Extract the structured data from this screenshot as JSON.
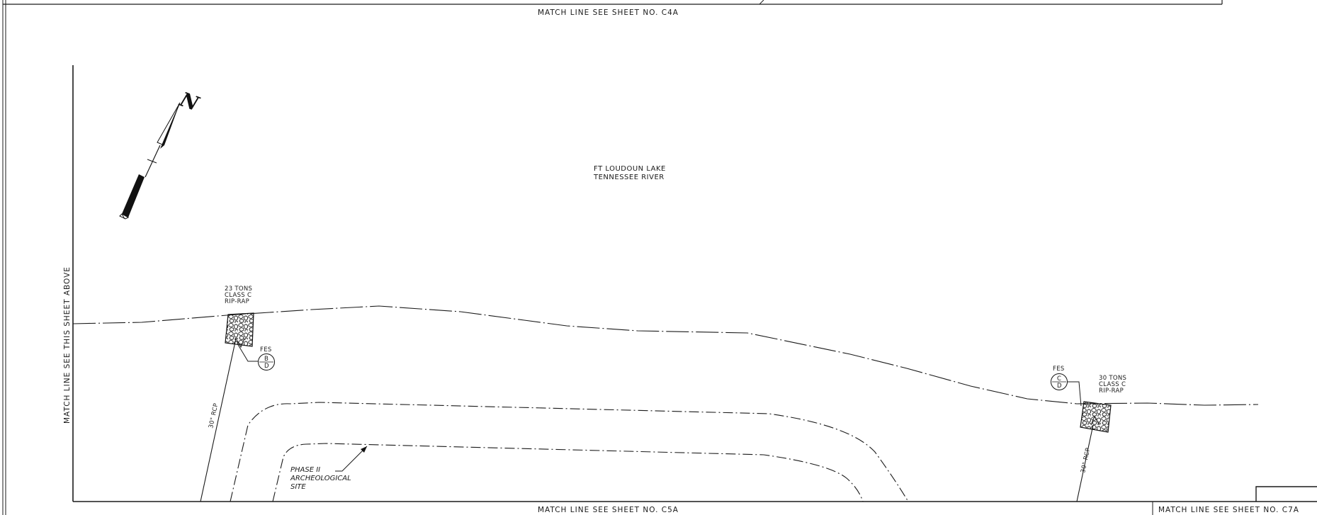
{
  "sheet": {
    "match_lines": {
      "top": "MATCH LINE     SEE SHEET NO.  C4A",
      "bottom": "MATCH LINE     SEE SHEET NO.  C5A",
      "bottom_right": "MATCH LINE   SEE SHEET NO. C7A",
      "left": "MATCH LINE   SEE THIS SHEET ABOVE"
    },
    "north_arrow": {
      "label": "N"
    },
    "water_body": {
      "line1": "FT LOUDOUN LAKE",
      "line2": "TENNESSEE RIVER"
    },
    "riprap_left": {
      "line1": "23 TONS",
      "line2": "CLASS C",
      "line3": "RIP-RAP"
    },
    "riprap_right": {
      "line1": "30 TONS",
      "line2": "CLASS C",
      "line3": "RIP-RAP"
    },
    "fes_left": {
      "label": "FES",
      "top": "B",
      "bottom": "D"
    },
    "fes_right": {
      "label": "FES",
      "top": "C",
      "bottom": "D"
    },
    "pipe_left": {
      "label": "30\" RCP"
    },
    "pipe_right": {
      "label": "30\" RCP"
    },
    "site": {
      "line1": "PHASE II",
      "line2": "ARCHEOLOGICAL",
      "line3": "SITE"
    }
  }
}
